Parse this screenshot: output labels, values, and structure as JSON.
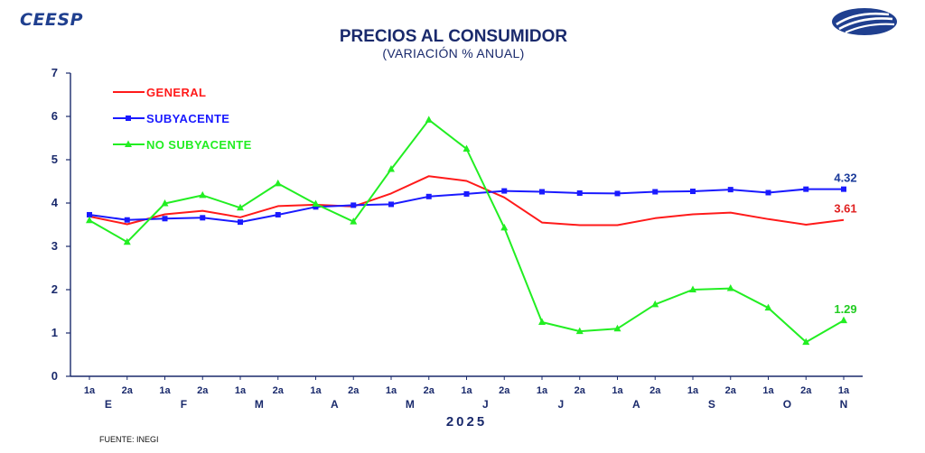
{
  "header": {
    "brand": "CEESP",
    "logo_icon": "ceesp-globe-logo-icon",
    "title": "PRECIOS AL CONSUMIDOR",
    "subtitle": "(VARIACIÓN % ANUAL)",
    "source": "FUENTE: INEGI"
  },
  "chart_data": {
    "type": "line",
    "title": "PRECIOS AL CONSUMIDOR",
    "subtitle": "(VARIACIÓN % ANUAL)",
    "xlabel": "",
    "ylabel": "",
    "year_label": "2025",
    "ylim": [
      0,
      7
    ],
    "yticks": [
      "0",
      "1",
      "2",
      "3",
      "4",
      "5",
      "6",
      "7"
    ],
    "categories": [
      "1a",
      "2a",
      "1a",
      "2a",
      "1a",
      "2a",
      "1a",
      "2a",
      "1a",
      "2a",
      "1a",
      "2a",
      "1a",
      "2a",
      "1a",
      "2a",
      "1a",
      "2a",
      "1a",
      "2a",
      "1a"
    ],
    "months": [
      {
        "label": "E",
        "start": 0,
        "end": 1
      },
      {
        "label": "F",
        "start": 2,
        "end": 3
      },
      {
        "label": "M",
        "start": 4,
        "end": 5
      },
      {
        "label": "A",
        "start": 6,
        "end": 7
      },
      {
        "label": "M",
        "start": 8,
        "end": 9
      },
      {
        "label": "J",
        "start": 10,
        "end": 11
      },
      {
        "label": "J",
        "start": 12,
        "end": 13
      },
      {
        "label": "A",
        "start": 14,
        "end": 15
      },
      {
        "label": "S",
        "start": 16,
        "end": 17
      },
      {
        "label": "O",
        "start": 18,
        "end": 19
      },
      {
        "label": "N",
        "start": 20,
        "end": 20
      }
    ],
    "series": [
      {
        "name": "GENERAL",
        "color": "#ff1a1a",
        "marker": "none",
        "values": [
          3.69,
          3.51,
          3.74,
          3.82,
          3.67,
          3.93,
          3.96,
          3.92,
          4.22,
          4.62,
          4.51,
          4.13,
          3.55,
          3.49,
          3.49,
          3.65,
          3.74,
          3.78,
          3.63,
          3.5,
          3.61
        ],
        "end_label": "3.61"
      },
      {
        "name": "SUBYACENTE",
        "color": "#1a1aff",
        "marker": "square",
        "values": [
          3.73,
          3.61,
          3.64,
          3.66,
          3.56,
          3.73,
          3.91,
          3.95,
          3.97,
          4.15,
          4.21,
          4.28,
          4.26,
          4.23,
          4.22,
          4.26,
          4.27,
          4.31,
          4.24,
          4.32,
          4.32
        ],
        "end_label": "4.32"
      },
      {
        "name": "NO SUBYACENTE",
        "color": "#22ee22",
        "marker": "triangle",
        "values": [
          3.6,
          3.1,
          3.99,
          4.18,
          3.89,
          4.45,
          3.98,
          3.57,
          4.78,
          5.92,
          5.25,
          3.43,
          1.25,
          1.04,
          1.1,
          1.66,
          2.0,
          2.03,
          1.58,
          0.79,
          1.29
        ],
        "end_label": "1.29"
      }
    ],
    "legend_position": "top-left",
    "grid": false
  }
}
